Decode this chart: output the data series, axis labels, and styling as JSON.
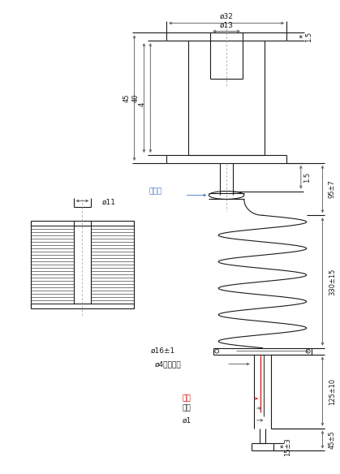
{
  "fig_width": 4.19,
  "fig_height": 5.84,
  "dpi": 100,
  "bg_color": "#ffffff",
  "line_color": "#1a1a1a",
  "dim_color": "#555555",
  "blue_color": "#4472c4",
  "red_color": "#cc0000",
  "annotations": {
    "phi11": "ø11",
    "phi32": "ø32",
    "phi13": "ø13",
    "phi16": "ø16±1",
    "phi4": "ø4（黑色）",
    "phi1": "ø1",
    "dim_15a": "1.5",
    "dim_4": "4",
    "dim_45_coil": "45",
    "dim_40": "40",
    "dim_15b": "1.5",
    "dim_95": "95±7",
    "dim_330": "330±15",
    "dim_125": "125±10",
    "dim_45": "45±5",
    "dim_15c": "15±3",
    "huxianquan": "护线圈",
    "red": "红色",
    "black": "黑色"
  }
}
